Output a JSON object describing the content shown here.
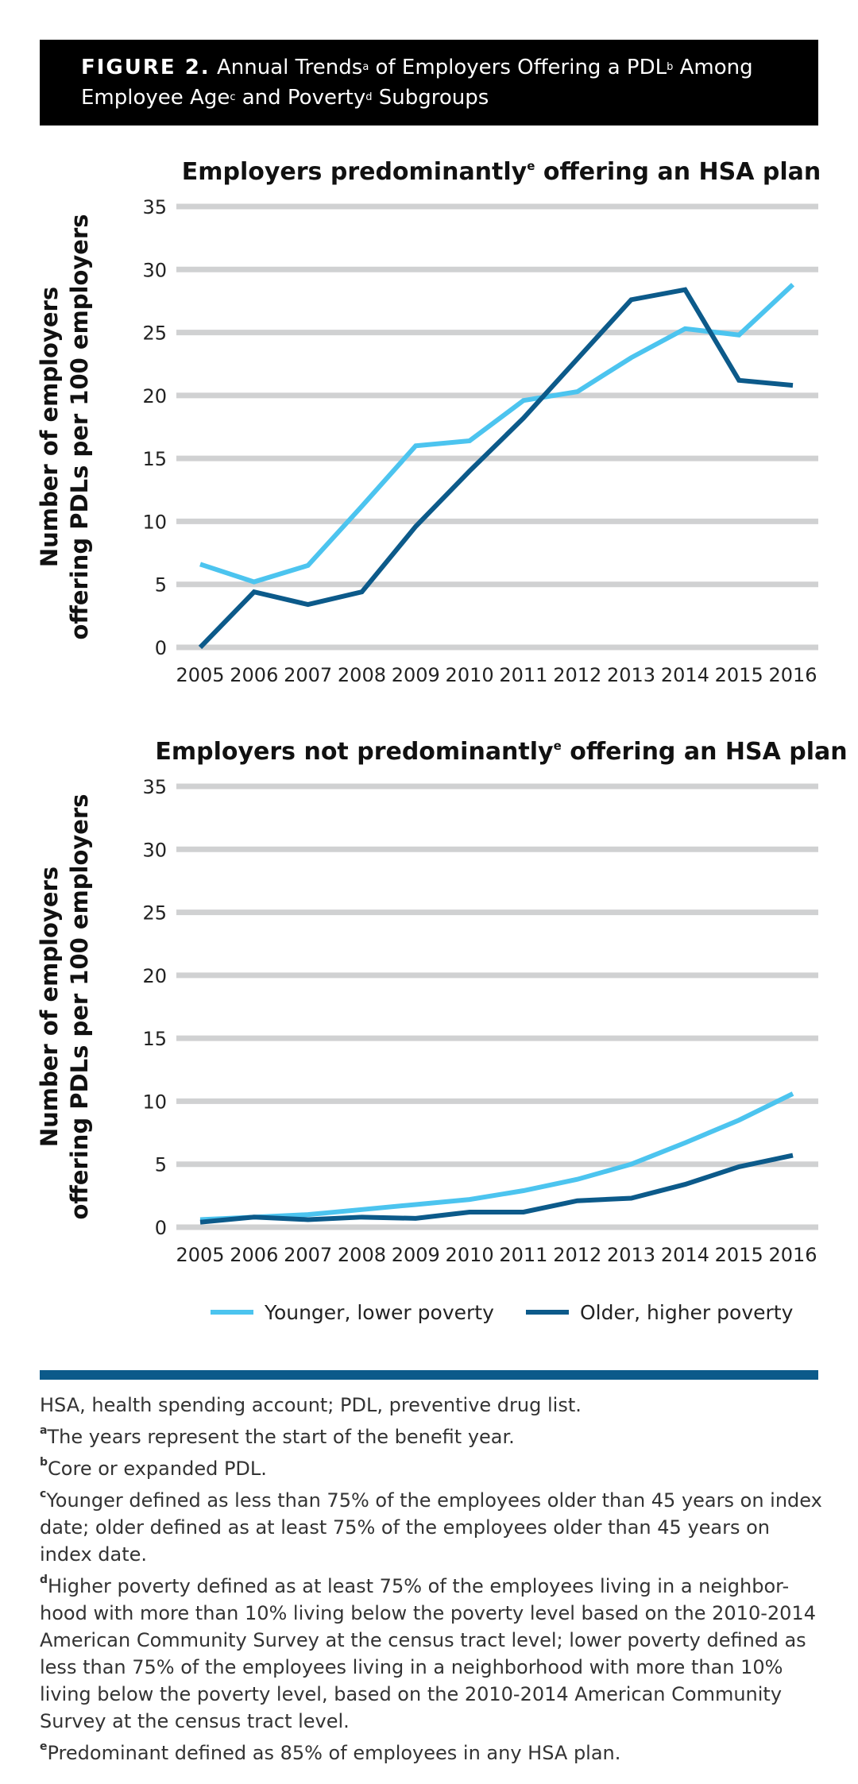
{
  "figure": {
    "label": "FIGURE 2.",
    "title_parts": [
      "Annual Trends",
      "a",
      " of Employers Offering a PDL",
      "b",
      " Among",
      "Employee Age",
      "c",
      " and Poverty",
      "d",
      " Subgroups"
    ]
  },
  "colors": {
    "younger_lower": "#4cc4ef",
    "older_higher": "#0c5a8a",
    "grid": "#d0d1d2",
    "divider": "#0c5a8a"
  },
  "chart_data": [
    {
      "type": "line",
      "title": "Employers predominantly",
      "title_sup": "e",
      "title_suffix": " offering an HSA plan",
      "ylabel_line1": "Number of employers",
      "ylabel_line2": "offering PDLs per 100 employers",
      "ylim": [
        0,
        35
      ],
      "yticks": [
        0,
        5,
        10,
        15,
        20,
        25,
        30,
        35
      ],
      "grid": true,
      "x": [
        "2005",
        "2006",
        "2007",
        "2008",
        "2009",
        "2010",
        "2011",
        "2012",
        "2013",
        "2014",
        "2015",
        "2016"
      ],
      "series": [
        {
          "name": "Younger, lower poverty",
          "color": "#4cc4ef",
          "values": [
            6.6,
            5.2,
            6.5,
            11.2,
            16.0,
            16.4,
            19.6,
            20.3,
            23.0,
            25.3,
            24.8,
            28.8
          ]
        },
        {
          "name": "Older, higher poverty",
          "color": "#0c5a8a",
          "values": [
            0.0,
            4.4,
            3.4,
            4.4,
            9.6,
            14.0,
            18.2,
            22.9,
            27.6,
            28.4,
            21.2,
            20.8
          ]
        }
      ]
    },
    {
      "type": "line",
      "title": "Employers not predominantly",
      "title_sup": "e",
      "title_suffix": " offering an HSA plan",
      "ylabel_line1": "Number of employers",
      "ylabel_line2": "offering PDLs per 100 employers",
      "ylim": [
        0,
        35
      ],
      "yticks": [
        0,
        5,
        10,
        15,
        20,
        25,
        30,
        35
      ],
      "grid": true,
      "x": [
        "2005",
        "2006",
        "2007",
        "2008",
        "2009",
        "2010",
        "2011",
        "2012",
        "2013",
        "2014",
        "2015",
        "2016"
      ],
      "series": [
        {
          "name": "Younger, lower poverty",
          "color": "#4cc4ef",
          "values": [
            0.6,
            0.8,
            1.0,
            1.4,
            1.8,
            2.2,
            2.9,
            3.8,
            5.0,
            6.7,
            8.5,
            10.6
          ]
        },
        {
          "name": "Older, higher poverty",
          "color": "#0c5a8a",
          "values": [
            0.4,
            0.8,
            0.6,
            0.8,
            0.7,
            1.2,
            1.2,
            2.1,
            2.3,
            3.4,
            4.8,
            5.7
          ]
        }
      ]
    }
  ],
  "legend": [
    {
      "label": "Younger, lower poverty",
      "color": "#4cc4ef"
    },
    {
      "label": "Older, higher poverty",
      "color": "#0c5a8a"
    }
  ],
  "footnotes": {
    "abbrev": "HSA, health spending account; PDL, preventive drug list.",
    "items": [
      {
        "mark": "a",
        "text": "The years represent the start of the benefit year."
      },
      {
        "mark": "b",
        "text": "Core or expanded PDL."
      },
      {
        "mark": "c",
        "text": "Younger defined as less than 75% of the employees older than 45 years on index date; older defined as at least 75% of the employees older than 45 years on index date."
      },
      {
        "mark": "d",
        "text": "Higher poverty defined as at least 75% of the employees living in a neighbor-hood with more than 10% living below the poverty level based on the 2010-2014 American Community Survey at the census tract level; lower poverty defined as less than 75% of the employees living in a neighborhood with more than 10% living below the poverty level, based on the 2010-2014 American Community Survey at the census tract level."
      },
      {
        "mark": "e",
        "text": "Predominant defined as 85% of employees in any HSA plan."
      }
    ]
  }
}
